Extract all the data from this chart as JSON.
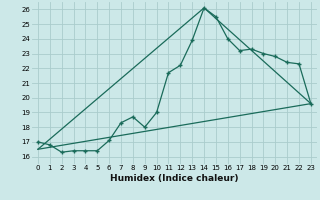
{
  "title": "",
  "xlabel": "Humidex (Indice chaleur)",
  "bg_color": "#cce8e8",
  "grid_color": "#aacccc",
  "line_color": "#1a6b5a",
  "xlim": [
    -0.5,
    23.5
  ],
  "ylim": [
    15.5,
    26.5
  ],
  "xticks": [
    0,
    1,
    2,
    3,
    4,
    5,
    6,
    7,
    8,
    9,
    10,
    11,
    12,
    13,
    14,
    15,
    16,
    17,
    18,
    19,
    20,
    21,
    22,
    23
  ],
  "yticks": [
    16,
    17,
    18,
    19,
    20,
    21,
    22,
    23,
    24,
    25,
    26
  ],
  "line1_x": [
    0,
    1,
    2,
    3,
    4,
    5,
    6,
    7,
    8,
    9,
    10,
    11,
    12,
    13,
    14,
    15,
    16,
    17,
    18,
    19,
    20,
    21,
    22,
    23
  ],
  "line1_y": [
    17.0,
    16.8,
    16.3,
    16.4,
    16.4,
    16.4,
    17.1,
    18.3,
    18.7,
    18.0,
    19.0,
    21.7,
    22.2,
    23.9,
    26.1,
    25.5,
    24.0,
    23.2,
    23.3,
    23.0,
    22.8,
    22.4,
    22.3,
    19.6
  ],
  "line2_x": [
    0,
    23
  ],
  "line2_y": [
    16.5,
    19.6
  ],
  "line3_x": [
    0,
    14,
    23
  ],
  "line3_y": [
    16.5,
    26.1,
    19.6
  ]
}
